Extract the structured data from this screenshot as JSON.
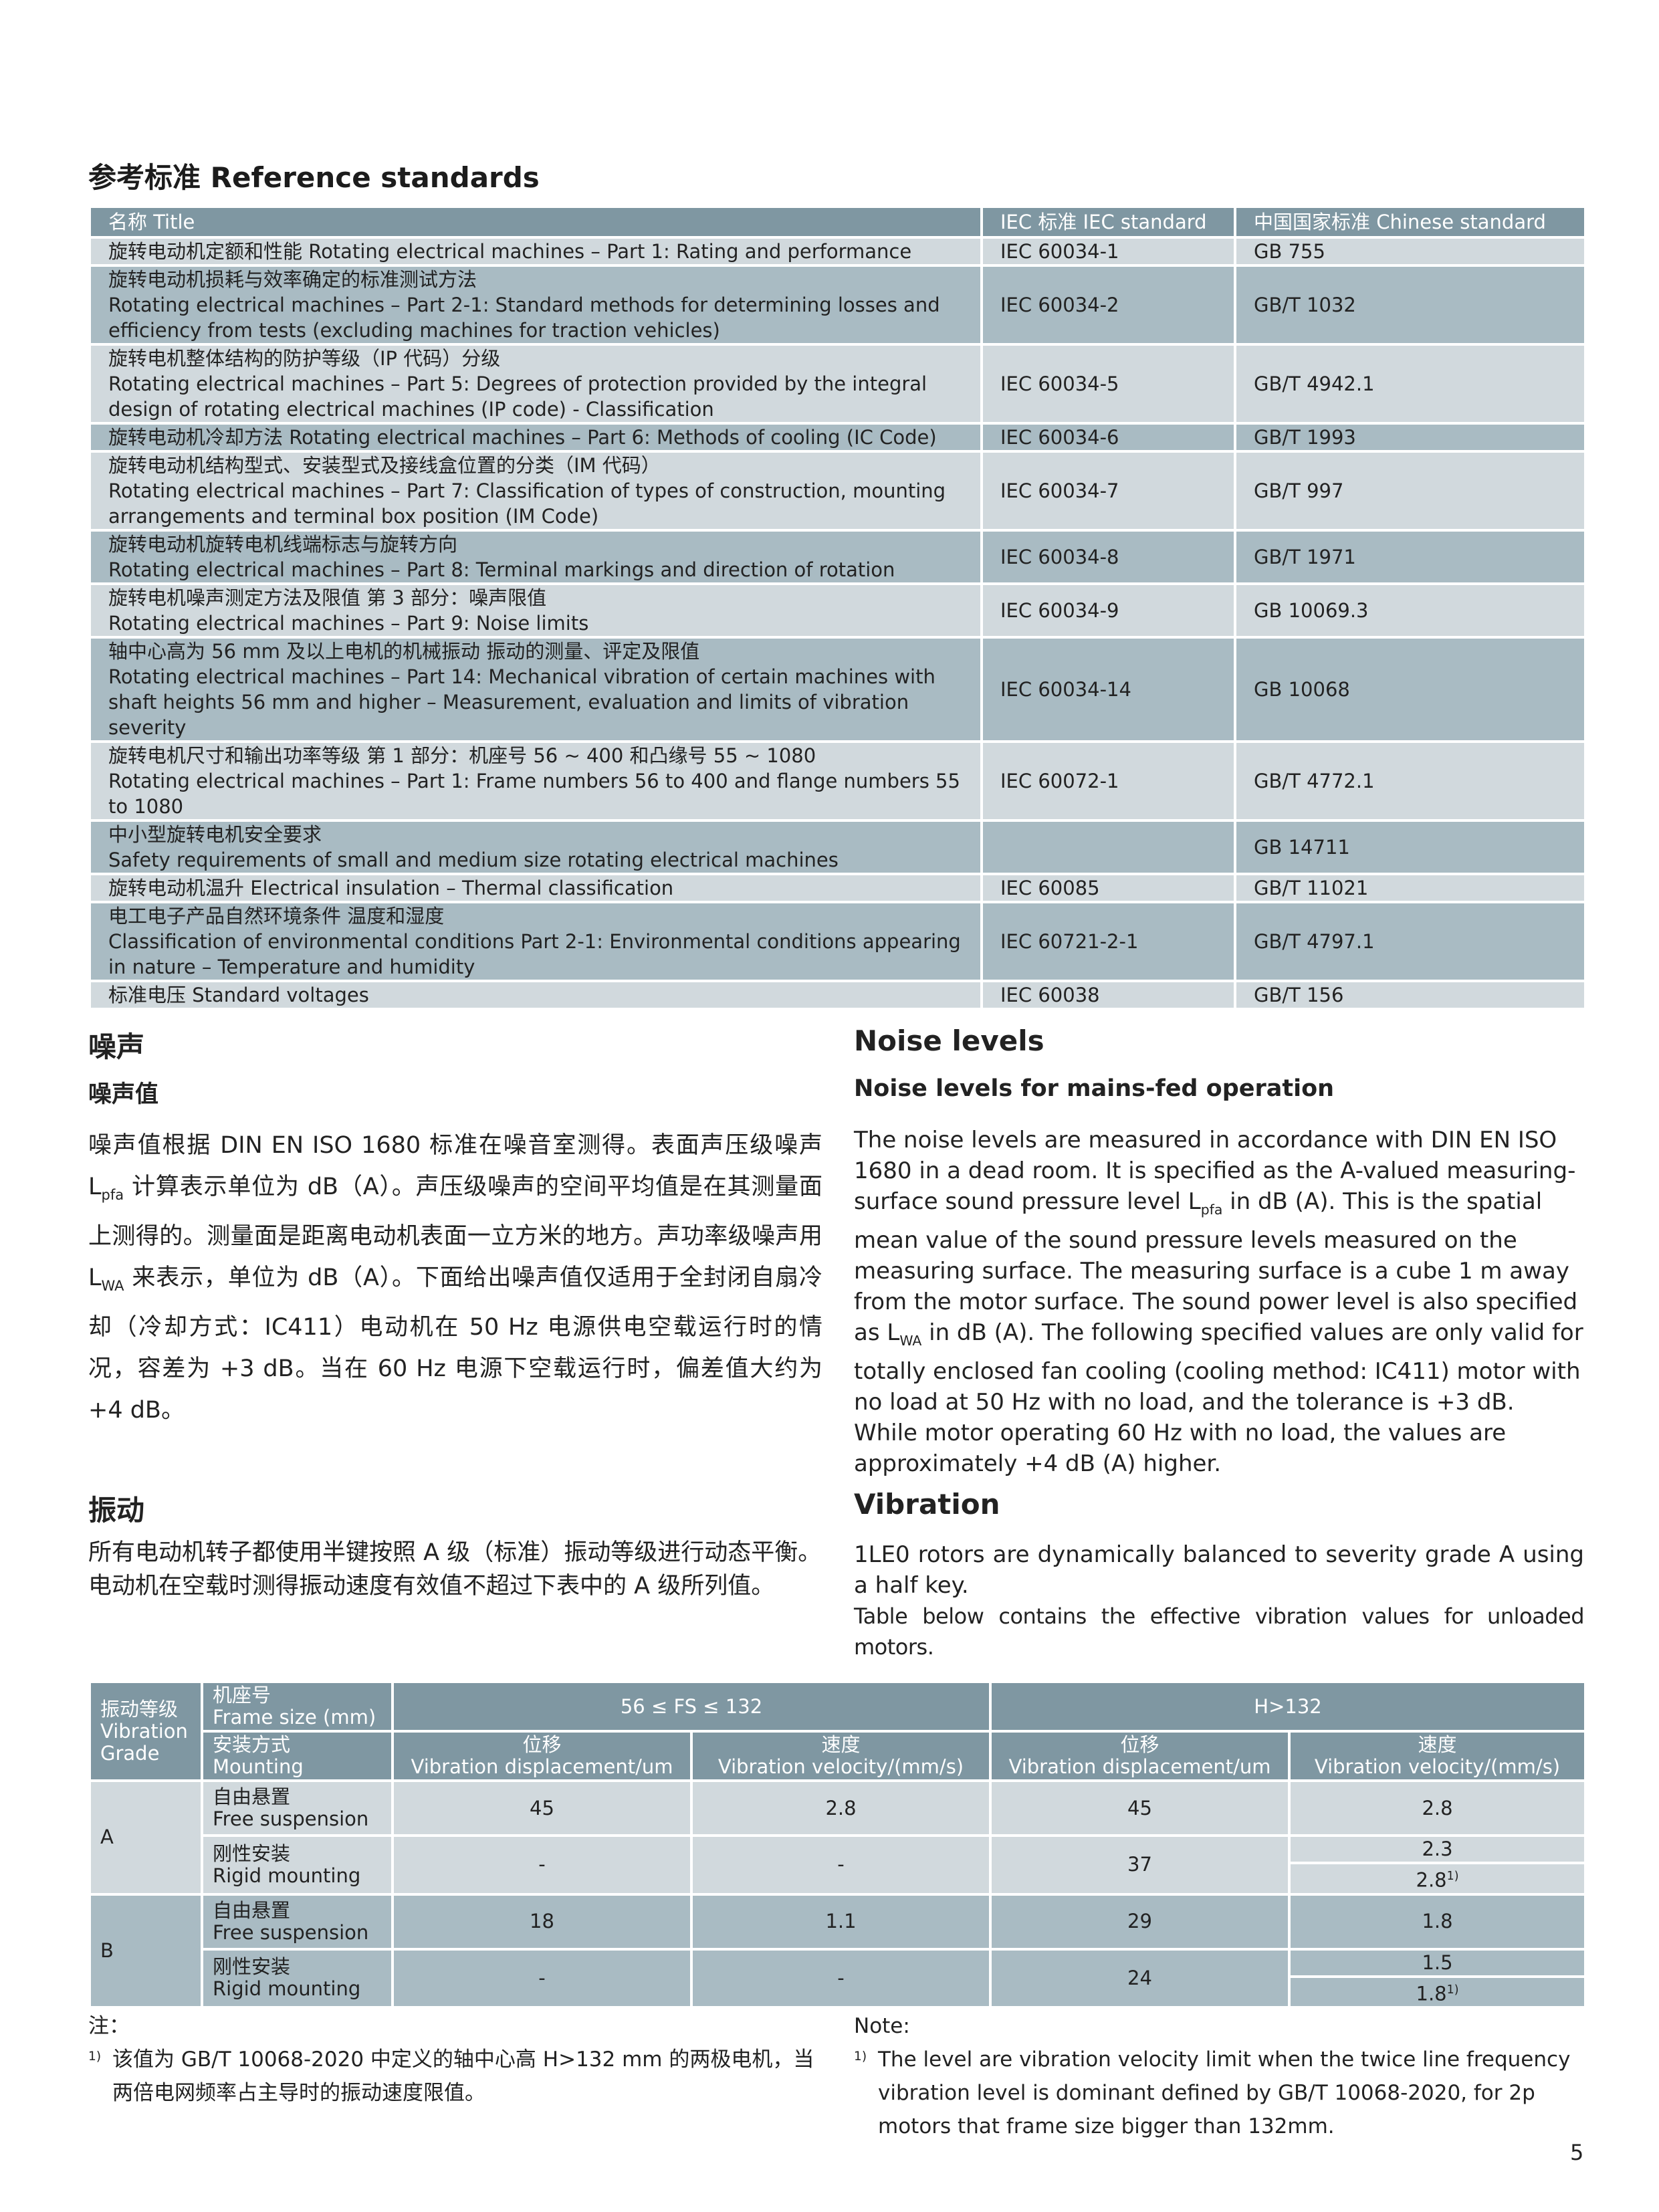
{
  "reference": {
    "heading": "参考标准 Reference standards",
    "columns": [
      "名称  Title",
      "IEC 标准  IEC standard",
      "中国国家标准  Chinese standard"
    ],
    "rows": [
      {
        "title": [
          "旋转电动机定额和性能 Rotating electrical machines – Part 1: Rating and performance"
        ],
        "iec": "IEC 60034-1",
        "gb": "GB 755"
      },
      {
        "title": [
          "旋转电动机损耗与效率确定的标准测试方法",
          "Rotating electrical machines – Part 2-1: Standard methods for determining losses and efficiency from tests (excluding machines for traction vehicles)"
        ],
        "iec": "IEC 60034-2",
        "gb": "GB/T 1032"
      },
      {
        "title": [
          "旋转电机整体结构的防护等级（IP 代码）分级",
          "Rotating electrical machines – Part 5: Degrees of protection provided by the integral design of rotating electrical machines (IP code)  - Classification"
        ],
        "iec": "IEC 60034-5",
        "gb": "GB/T 4942.1"
      },
      {
        "title": [
          "旋转电动机冷却方法 Rotating electrical machines – Part 6: Methods of cooling (IC Code)"
        ],
        "iec": "IEC 60034-6",
        "gb": "GB/T 1993"
      },
      {
        "title": [
          "旋转电动机结构型式、安装型式及接线盒位置的分类（IM 代码）",
          "Rotating electrical machines – Part 7: Classification of types of construction, mounting arrangements and terminal box position (IM Code)"
        ],
        "iec": "IEC 60034-7",
        "gb": "GB/T 997"
      },
      {
        "title": [
          "旋转电动机旋转电机线端标志与旋转方向",
          "Rotating electrical machines – Part 8: Terminal markings and direction of rotation"
        ],
        "iec": "IEC 60034-8",
        "gb": "GB/T 1971"
      },
      {
        "title": [
          "旋转电机噪声测定方法及限值   第 3 部分：噪声限值",
          "Rotating electrical machines – Part 9: Noise limits"
        ],
        "iec": "IEC 60034-9",
        "gb": "GB 10069.3"
      },
      {
        "title": [
          "轴中心高为 56 mm 及以上电机的机械振动   振动的测量、评定及限值",
          "Rotating electrical machines – Part 14: Mechanical vibration of certain machines with shaft heights 56 mm and higher – Measurement, evaluation and limits of vibration severity"
        ],
        "iec": "IEC 60034-14",
        "gb": "GB 10068"
      },
      {
        "title": [
          "旋转电机尺寸和输出功率等级   第 1 部分：机座号 56 ~ 400 和凸缘号 55 ~ 1080",
          "Rotating electrical machines – Part 1: Frame numbers 56 to 400 and flange numbers 55 to 1080"
        ],
        "iec": "IEC 60072-1",
        "gb": "GB/T 4772.1"
      },
      {
        "title": [
          "中小型旋转电机安全要求",
          "Safety requirements of small and medium size rotating electrical machines"
        ],
        "iec": "",
        "gb": "GB 14711"
      },
      {
        "title": [
          "旋转电动机温升 Electrical insulation – Thermal classification"
        ],
        "iec": "IEC 60085",
        "gb": "GB/T 11021"
      },
      {
        "title": [
          "电工电子产品自然环境条件   温度和湿度",
          "Classification of environmental conditions Part 2-1: Environmental conditions appearing in nature – Temperature and humidity"
        ],
        "iec": "IEC 60721-2-1",
        "gb": "GB/T 4797.1"
      },
      {
        "title": [
          "标准电压 Standard voltages"
        ],
        "iec": "IEC 60038",
        "gb": "GB/T 156"
      }
    ]
  },
  "noise": {
    "cn_heading": "噪声",
    "cn_sub": "噪声值",
    "cn_text": [
      "噪声值根据 DIN EN ISO 1680 标准在噪音室测得。表面声压级噪声 L",
      "pfa",
      " 计算表示单位为 dB（A）。声压级噪声的空间平均值是在其测量面上测得的。测量面是距离电动机表面一立方米的地方。声功率级噪声用 L",
      "WA",
      " 来表示，单位为 dB（A）。下面给出噪声值仅适用于全封闭自扇冷却（冷却方式：IC411）电动机在 50 Hz 电源供电空载运行时的情况，容差为 +3 dB。当在 60 Hz 电源下空载运行时，偏差值大约为 +4 dB。"
    ],
    "en_heading": "Noise levels",
    "en_sub": "Noise levels for mains-fed operation",
    "en_text": [
      "The noise levels are measured in accordance with DIN EN ISO 1680 in a dead room. It is specified as the A-valued measuring-surface sound pressure level L",
      "pfa",
      " in dB (A). This is the spatial mean value of the sound pressure levels measured on the measuring surface. The measuring surface is a cube 1 m away from the motor surface. The sound power level is also specified as L",
      "WA",
      " in dB (A). The following specified values are only valid for totally enclosed fan cooling (cooling method: IC411) motor with no load at 50 Hz with no load, and the tolerance is +3 dB. While motor operating 60 Hz with no load, the values are approximately +4 dB (A) higher."
    ]
  },
  "vibration": {
    "cn_heading": "振动",
    "cn_text1": "所有电动机转子都使用半键按照  A  级（标准）振动等级进行动态平衡。",
    "cn_text2": "电动机在空载时测得振动速度有效值不超过下表中的 A 级所列值。",
    "en_heading": "Vibration",
    "en_text1": "1LE0 rotors are dynamically balanced to severity grade A using a half key.",
    "en_text2": "Table below contains the effective vibration values for unloaded motors.",
    "table": {
      "grade_header": [
        "振动等级",
        "Vibration",
        "Grade"
      ],
      "frame_header": [
        "机座号",
        "Frame size (mm)"
      ],
      "mounting_header": [
        "安装方式",
        "Mounting"
      ],
      "groups": [
        "56 ≤ FS ≤ 132",
        "H>132"
      ],
      "disp_header": [
        "位移",
        "Vibration displacement/um"
      ],
      "vel_header": [
        "速度",
        "Vibration velocity/(mm/s)"
      ],
      "free": [
        "自由悬置",
        "Free suspension"
      ],
      "rigid": [
        "刚性安装",
        "Rigid mounting"
      ],
      "A": {
        "label": "A",
        "free": [
          "45",
          "2.8",
          "45",
          "2.8"
        ],
        "rigid": [
          "-",
          "-",
          "37",
          "2.3",
          "2.8"
        ]
      },
      "B": {
        "label": "B",
        "free": [
          "18",
          "1.1",
          "29",
          "1.8"
        ],
        "rigid": [
          "-",
          "-",
          "24",
          "1.5",
          "1.8"
        ]
      },
      "footnote_mark": "1)"
    }
  },
  "notes": {
    "cn_label": "注：",
    "cn_mark": "1)",
    "cn_text": "该值为 GB/T 10068-2020 中定义的轴中心高 H>132 mm 的两极电机，当两倍电网频率占主导时的振动速度限值。",
    "en_label": "Note:",
    "en_mark": "1)",
    "en_text": "The level are vibration velocity limit when the twice line frequency vibration level is dominant defined by GB/T 10068-2020, for 2p motors that frame size bigger than 132mm."
  },
  "page_number": "5"
}
